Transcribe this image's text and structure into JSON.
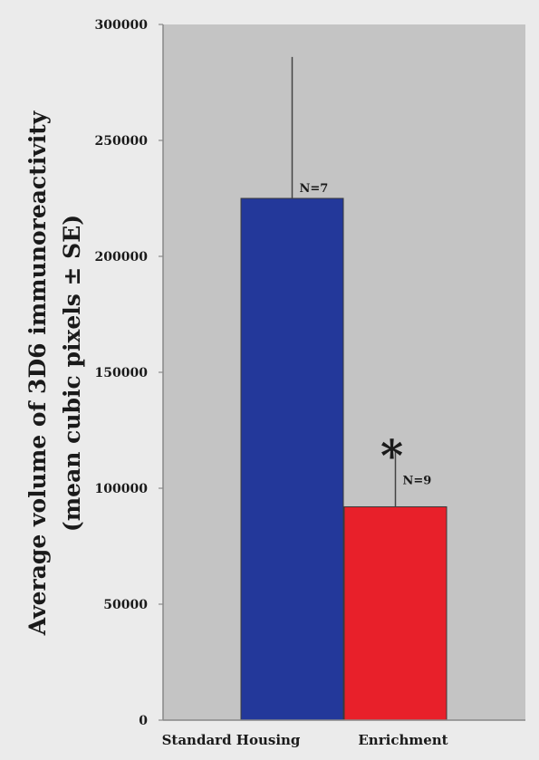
{
  "chart_data": {
    "type": "bar",
    "categories": [
      "Standard Housing",
      "Enrichment"
    ],
    "values": [
      225000,
      92000
    ],
    "error_upper": [
      286000,
      116000
    ],
    "annotations": [
      "N=7",
      "N=9"
    ],
    "significance_marker": "*",
    "significance_index": 1,
    "ylabel": "Average volume of 3D6 immunoreactivity",
    "ylabel_line2": "(mean cubic pixels ± SE)",
    "ylim": [
      0,
      300000
    ],
    "yticks": [
      "0",
      "50000",
      "100000",
      "150000",
      "200000",
      "250000",
      "300000"
    ],
    "grid": false,
    "colors": {
      "bars": [
        "#23389a",
        "#e8202a"
      ],
      "plot_background": "#c4c4c4",
      "page_background": "#ebebeb",
      "axis": "#888888",
      "error_bar": "#444444",
      "text": "#1a1a1a"
    }
  }
}
